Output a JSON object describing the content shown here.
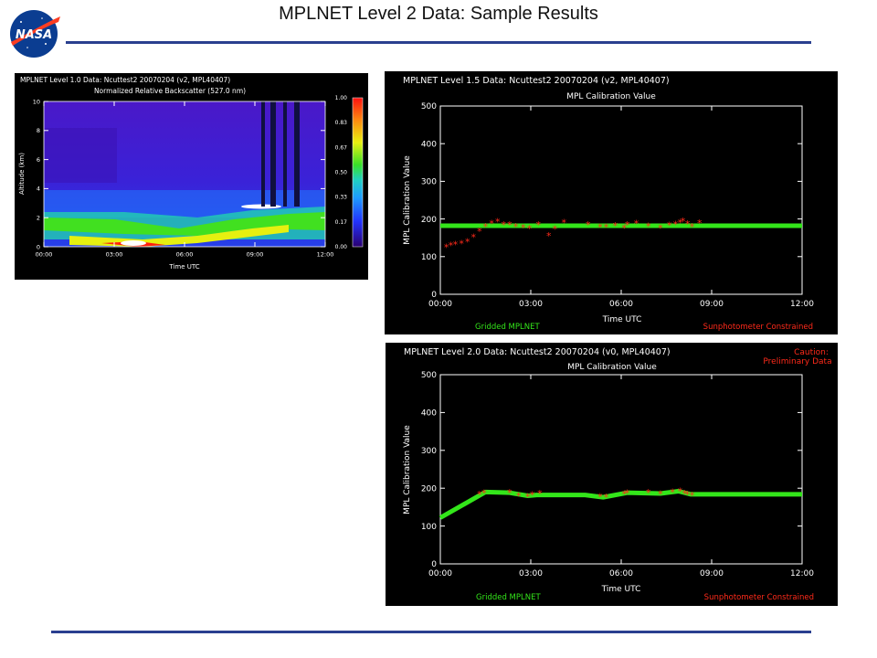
{
  "slide": {
    "title": "MPLNET Level 2 Data:  Sample Results",
    "logo_text": "NASA"
  },
  "colors": {
    "rule": "#2a3f8f",
    "green": "#33e61a",
    "red": "#ff2a1a",
    "axis": "#ffffff"
  },
  "chart_data": [
    {
      "type": "heatmap",
      "title": "MPLNET Level 1.0 Data: Ncuttest2 20070204 (v2, MPL40407)",
      "subtitle": "Normalized Relative Backscatter (527.0 nm)",
      "xlabel": "Time UTC",
      "ylabel": "Altitude (km)",
      "x_ticks": [
        "00:00",
        "03:00",
        "06:00",
        "09:00",
        "12:00"
      ],
      "y_ticks": [
        "0",
        "2",
        "4",
        "6",
        "8",
        "10"
      ],
      "xlim": [
        0,
        12
      ],
      "ylim": [
        0,
        10
      ],
      "colorbar_ticks": [
        "0.00",
        "0.17",
        "0.33",
        "0.50",
        "0.67",
        "0.83",
        "1.00"
      ],
      "colorbar_range": [
        0,
        1
      ]
    },
    {
      "type": "scatter",
      "title": "MPLNET Level 1.5 Data: Ncuttest2 20070204 (v2, MPL40407)",
      "subtitle": "MPL Calibration Value",
      "xlabel": "Time UTC",
      "ylabel": "MPL Calibration Value",
      "x_ticks": [
        "00:00",
        "03:00",
        "06:00",
        "09:00",
        "12:00"
      ],
      "y_ticks": [
        "0",
        "100",
        "200",
        "300",
        "400",
        "500"
      ],
      "xlim": [
        0,
        12
      ],
      "ylim": [
        0,
        500
      ],
      "legend_left": "Gridded MPLNET",
      "legend_right": "Sunphotometer Constrained",
      "series": [
        {
          "name": "Gridded MPLNET",
          "style": "line",
          "x": [
            0,
            12
          ],
          "y": [
            182,
            182
          ]
        },
        {
          "name": "Sunphotometer Constrained",
          "style": "points",
          "x": [
            0.2,
            0.35,
            0.5,
            0.7,
            0.9,
            1.1,
            1.3,
            1.5,
            1.7,
            1.9,
            2.1,
            2.3,
            2.5,
            2.75,
            2.95,
            3.25,
            3.6,
            3.8,
            4.1,
            4.9,
            5.3,
            5.5,
            5.8,
            6.1,
            6.2,
            6.5,
            6.9,
            7.3,
            7.6,
            7.8,
            7.95,
            8.05,
            8.2,
            8.35,
            8.6
          ],
          "y": [
            125,
            130,
            132,
            135,
            140,
            152,
            168,
            180,
            188,
            193,
            185,
            184,
            180,
            177,
            175,
            185,
            155,
            173,
            190,
            184,
            179,
            178,
            182,
            176,
            185,
            188,
            181,
            176,
            183,
            186,
            190,
            194,
            187,
            180,
            189
          ]
        }
      ]
    },
    {
      "type": "line",
      "title": "MPLNET Level 2.0 Data: Ncuttest2 20070204 (v0, MPL40407)",
      "subtitle": "MPL Calibration Value",
      "xlabel": "Time UTC",
      "ylabel": "MPL Calibration Value",
      "annotation": [
        "Caution:",
        "Preliminary Data"
      ],
      "x_ticks": [
        "00:00",
        "03:00",
        "06:00",
        "09:00",
        "12:00"
      ],
      "y_ticks": [
        "0",
        "100",
        "200",
        "300",
        "400",
        "500"
      ],
      "xlim": [
        0,
        12
      ],
      "ylim": [
        0,
        500
      ],
      "legend_left": "Gridded MPLNET",
      "legend_right": "Sunphotometer Constrained",
      "series": [
        {
          "name": "Gridded MPLNET",
          "style": "line",
          "x": [
            0,
            1.5,
            2.3,
            2.9,
            3.2,
            4.8,
            5.4,
            6.2,
            7.3,
            7.9,
            8.3,
            12
          ],
          "y": [
            122,
            190,
            188,
            180,
            182,
            182,
            176,
            188,
            186,
            192,
            184,
            184
          ]
        },
        {
          "name": "Sunphotometer Constrained",
          "style": "points",
          "x": [
            1.3,
            1.45,
            2.3,
            2.6,
            2.9,
            3.05,
            3.3,
            5.3,
            5.5,
            6.1,
            6.2,
            6.9,
            7.3,
            7.7,
            7.95,
            8.1,
            8.2,
            8.35
          ],
          "y": [
            184,
            187,
            188,
            180,
            177,
            182,
            186,
            177,
            176,
            185,
            187,
            188,
            185,
            190,
            192,
            186,
            183,
            181
          ]
        }
      ]
    }
  ]
}
